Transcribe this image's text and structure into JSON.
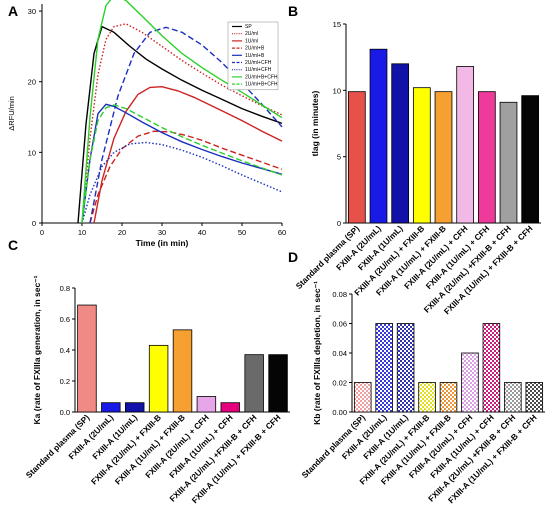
{
  "chart_data": [
    {
      "panel": "A",
      "type": "line",
      "xlabel": "Time (in min)",
      "ylabel": "ΔRFU/min",
      "xlim": [
        0,
        60
      ],
      "ylim": [
        0,
        31
      ],
      "x_ticks": [
        "0",
        "10",
        "20",
        "30",
        "40",
        "50",
        "60"
      ],
      "y_ticks": [
        "0",
        "10",
        "20",
        "30"
      ],
      "legend_position": "top-right",
      "series": [
        {
          "name": "SP",
          "color": "#000000",
          "dash": "solid",
          "x": [
            9,
            11,
            13,
            15,
            18,
            22,
            26,
            30,
            35,
            40,
            45,
            50,
            55,
            60
          ],
          "y": [
            0,
            14,
            24,
            27.8,
            27,
            25,
            23.2,
            21.8,
            20.2,
            18.8,
            17.5,
            16.2,
            15.1,
            14.1
          ]
        },
        {
          "name": "2U/ml",
          "color": "#cc2222",
          "dash": "dotted",
          "x": [
            10,
            12,
            14,
            16,
            18,
            21,
            25,
            30,
            35,
            40,
            45,
            50,
            55,
            60
          ],
          "y": [
            0,
            12,
            21,
            26,
            27.8,
            28.2,
            27,
            25,
            23,
            21.2,
            19.5,
            18,
            16.6,
            15.3
          ]
        },
        {
          "name": "1U/ml",
          "color": "#cc2222",
          "dash": "solid",
          "x": [
            13,
            15,
            18,
            21,
            24,
            27,
            30,
            34,
            38,
            42,
            46,
            50,
            55,
            60
          ],
          "y": [
            0,
            6,
            12,
            15.8,
            18.2,
            19.2,
            19.3,
            18.7,
            17.8,
            16.7,
            15.6,
            14.5,
            13,
            11.6
          ]
        },
        {
          "name": "2U/ml+B",
          "color": "#cc2222",
          "dash": "dashed",
          "x": [
            12,
            14,
            17,
            20,
            24,
            28,
            32,
            36,
            40,
            45,
            50,
            55,
            60
          ],
          "y": [
            0,
            4,
            8,
            10.5,
            12.3,
            13,
            12.9,
            12.4,
            11.7,
            10.6,
            9.6,
            8.6,
            7.6
          ]
        },
        {
          "name": "1U/ml+B",
          "color": "#1a2fbf",
          "dash": "solid",
          "x": [
            10,
            12,
            14,
            16,
            18,
            21,
            25,
            30,
            35,
            40,
            45,
            50,
            55,
            60
          ],
          "y": [
            0,
            9,
            15.5,
            16.8,
            16.5,
            15.6,
            14.3,
            12.8,
            11.5,
            10.4,
            9.4,
            8.5,
            7.7,
            6.9
          ]
        },
        {
          "name": "2U/ml+CFH",
          "color": "#1a2fbf",
          "dash": "dashed",
          "x": [
            12,
            15,
            19,
            23,
            27,
            31,
            35,
            40,
            45,
            50,
            55,
            60
          ],
          "y": [
            0,
            9,
            18,
            24,
            27,
            27.7,
            27,
            25.2,
            22.7,
            19.8,
            16.8,
            13.6
          ]
        },
        {
          "name": "1U/ml+CFH",
          "color": "#1a2fbf",
          "dash": "dotted",
          "x": [
            10,
            12,
            15,
            18,
            22,
            26,
            30,
            35,
            40,
            45,
            50,
            55,
            60
          ],
          "y": [
            0,
            4,
            8,
            10,
            11.2,
            11.4,
            11.1,
            10.3,
            9.3,
            8.1,
            6.8,
            5.6,
            4.4
          ]
        },
        {
          "name": "2U/ml+B+CFH",
          "color": "#2ad12a",
          "dash": "solid",
          "x": [
            10,
            12,
            14,
            16,
            18,
            21,
            25,
            30,
            35,
            40,
            45,
            50,
            55,
            60
          ],
          "y": [
            0,
            15,
            26,
            30.8,
            32.2,
            31.5,
            29.3,
            26.5,
            24,
            22,
            20.2,
            18.5,
            16.7,
            14.9
          ]
        },
        {
          "name": "1U/ml+B+CFH",
          "color": "#2ad12a",
          "dash": "dashed",
          "x": [
            10,
            12,
            14,
            16,
            18,
            21,
            25,
            30,
            35,
            40,
            45,
            50,
            55,
            60
          ],
          "y": [
            0,
            9,
            14.5,
            16.3,
            16.7,
            16.2,
            15,
            13.5,
            12.2,
            11,
            9.9,
            8.8,
            7.8,
            6.8
          ]
        }
      ]
    },
    {
      "panel": "B",
      "type": "bar",
      "ylabel": "tlag (in minutes)",
      "ylim": [
        0,
        15
      ],
      "y_ticks": [
        "0",
        "5",
        "10",
        "15"
      ],
      "categories": [
        "Standard plasma (SP)",
        "FXIII-A (2U/mL)",
        "FXIII-A (1U/mL)",
        "FXIII-A (2U/mL) + FXIII-B",
        "FXIII-A (1U/mL) + FXIII-B",
        "FXIII-A (2U/mL) + CFH",
        "FXIII-A (1U/mL) + CFH",
        "FXIII-A (2U/mL) +FXIII-B + CFH",
        "FXIII-A (1U/mL) + FXIII-B + CFH"
      ],
      "values": [
        9.9,
        13.1,
        12.0,
        10.2,
        9.9,
        11.8,
        9.9,
        9.1,
        9.6
      ],
      "colors": [
        "#e8504a",
        "#1a1ae6",
        "#1212a8",
        "#ffff00",
        "#f5a030",
        "#f2b8e6",
        "#ee3a9a",
        "#a0a0a0",
        "#050505"
      ]
    },
    {
      "panel": "C",
      "type": "bar",
      "ylabel": "Ka (rate of FXIIIa generation, in sec⁻¹",
      "ylim": [
        0,
        0.8
      ],
      "y_ticks": [
        "0.0",
        "0.2",
        "0.4",
        "0.6",
        "0.8"
      ],
      "categories": [
        "Standard plasma (SP)",
        "FXIII-A (2U/mL)",
        "FXIII-A (1U/mL)",
        "FXIII-A (2U/mL) + FXIII-B",
        "FXIII-A (1U/mL) + FXIII-B",
        "FXIII-A (2U/mL) + CFH",
        "FXIII-A (1U/mL) + CFH",
        "FXIII-A (2U/mL) +FXIII-B + CFH",
        "FXIII-A (1U/mL) + FXIII-B + CFH"
      ],
      "values": [
        0.69,
        0.06,
        0.06,
        0.43,
        0.53,
        0.1,
        0.06,
        0.37,
        0.37
      ],
      "colors": [
        "#f08a85",
        "#1a1ae6",
        "#1212a8",
        "#ffff00",
        "#f5a030",
        "#e7a6e8",
        "#e6007e",
        "#6a6a6a",
        "#050505"
      ]
    },
    {
      "panel": "D",
      "type": "bar",
      "ylabel": "Kb (rate of FXIIIa depletion, in sec⁻¹",
      "ylim": [
        0,
        0.08
      ],
      "y_ticks": [
        "0.00",
        "0.02",
        "0.04",
        "0.06",
        "0.08"
      ],
      "categories": [
        "Standard plasma (SP)",
        "FXIII-A (2U/mL)",
        "FXIII-A (1U/mL)",
        "FXIII-A (2U/mL) + FXIII-B",
        "FXIII-A (1U/mL) + FXIII-B",
        "FXIII-A (2U/mL) + CFH",
        "FXIII-A (1U/mL) + CFH",
        "FXIII-A (2U/mL) +FXIII-B + CFH",
        "FXIII-A (1U/mL) + FXIII-B + CFH"
      ],
      "values": [
        0.02,
        0.06,
        0.06,
        0.02,
        0.02,
        0.04,
        0.06,
        0.02,
        0.02
      ],
      "colors": [
        "#f0a0a0",
        "#3838e0",
        "#3030b0",
        "#e0e020",
        "#e8963a",
        "#d9a0e0",
        "#c81d7a",
        "#9a9a9a",
        "#4a4a4a"
      ]
    }
  ]
}
